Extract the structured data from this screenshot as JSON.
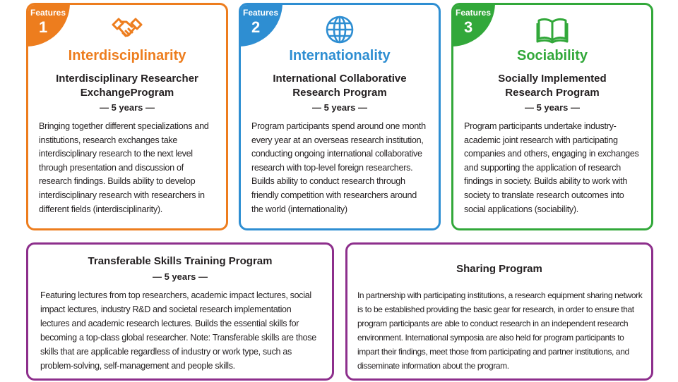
{
  "features": [
    {
      "badge_label": "Features",
      "number": "1",
      "icon": "handshake-icon",
      "color": "#ed7d1e",
      "keyword": "Interdisciplinarity",
      "title_line1": "Interdisciplinary Researcher",
      "title_line2": "ExchangeProgram",
      "duration": "— 5 years —",
      "description": "Bringing together different specializations and institutions, research exchanges take interdisciplinary research to the next level through presentation and discussion of research findings. Builds ability to develop interdisciplinary research with researchers in different fields (interdisciplinarity)."
    },
    {
      "badge_label": "Features",
      "number": "2",
      "icon": "globe-icon",
      "color": "#2e8ed2",
      "keyword": "Internationality",
      "title_line1": "International Collaborative",
      "title_line2": "Research Program",
      "duration": "— 5 years —",
      "description": "Program participants spend around one month every year at an overseas research institution, conducting ongoing international collaborative research with top-level foreign researchers. Builds ability to conduct research through friendly competition with researchers around the world (internationality)"
    },
    {
      "badge_label": "Features",
      "number": "3",
      "icon": "open-book-icon",
      "color": "#32a83a",
      "keyword": "Sociability",
      "title_line1": "Socially Implemented",
      "title_line2": "Research Program",
      "duration": "— 5 years —",
      "description": "Program participants undertake industry-academic joint research with participating companies and others, engaging in exchanges and supporting the application of research findings in society. Builds ability to work with society to translate research outcomes into social applications (sociability)."
    }
  ],
  "transferable": {
    "title": "Transferable Skills Training Program",
    "duration": "— 5 years —",
    "description": "Featuring lectures from top researchers, academic impact lectures, social impact lectures, industry R&D and societal research implementation lectures and academic research lectures. Builds the essential skills for becoming a top-class global researcher. Note: Transferable skills are those skills that are applicable regardless of industry or work type, such as problem-solving, self-management and people skills."
  },
  "sharing": {
    "title": "Sharing Program",
    "description": "In partnership with participating institutions, a research equipment sharing network is to be established providing the basic gear for research, in order to ensure that program participants are able to conduct research in an independent research environment. International symposia are also held for program participants to impart their findings, meet those from participating and partner institutions, and disseminate information about the program."
  },
  "colors": {
    "orange": "#ed7d1e",
    "blue": "#2e8ed2",
    "green": "#32a83a",
    "purple": "#8d2f8c"
  }
}
